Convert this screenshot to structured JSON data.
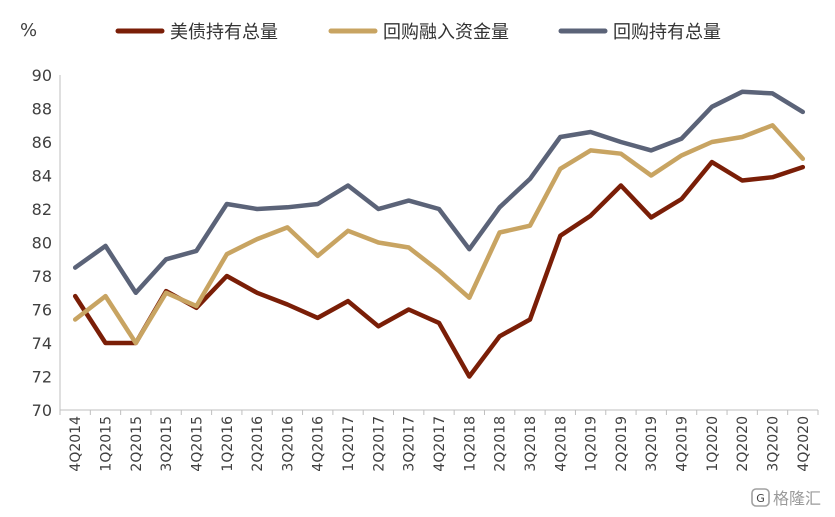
{
  "chart_data": {
    "type": "line",
    "ylabel": "%",
    "ylim": [
      70,
      90
    ],
    "yticks": [
      70,
      72,
      74,
      76,
      78,
      80,
      82,
      84,
      86,
      88,
      90
    ],
    "grid": false,
    "legend_position": "top",
    "categories": [
      "4Q2014",
      "1Q2015",
      "2Q2015",
      "3Q2015",
      "4Q2015",
      "1Q2016",
      "2Q2016",
      "3Q2016",
      "4Q2016",
      "1Q2017",
      "2Q2017",
      "3Q2017",
      "4Q2017",
      "1Q2018",
      "2Q2018",
      "3Q2018",
      "4Q2018",
      "1Q2019",
      "2Q2019",
      "3Q2019",
      "4Q2019",
      "1Q2020",
      "2Q2020",
      "3Q2020",
      "4Q2020"
    ],
    "series": [
      {
        "name": "美债持有总量",
        "color": "#7a1e07",
        "values": [
          76.8,
          74.0,
          74.0,
          77.1,
          76.1,
          78.0,
          77.0,
          76.3,
          75.5,
          76.5,
          75.0,
          76.0,
          75.2,
          72.0,
          74.4,
          75.4,
          80.4,
          81.6,
          83.4,
          81.5,
          82.6,
          84.8,
          83.7,
          83.9,
          84.5
        ]
      },
      {
        "name": "回购融入资金量",
        "color": "#c8a462",
        "values": [
          75.4,
          76.8,
          74.0,
          77.0,
          76.2,
          79.3,
          80.2,
          80.9,
          79.2,
          80.7,
          80.0,
          79.7,
          78.3,
          76.7,
          80.6,
          81.0,
          84.4,
          85.5,
          85.3,
          84.0,
          85.2,
          86.0,
          86.3,
          87.0,
          85.0
        ]
      },
      {
        "name": "回购持有总量",
        "color": "#5b6378",
        "values": [
          78.5,
          79.8,
          77.0,
          79.0,
          79.5,
          82.3,
          82.0,
          82.1,
          82.3,
          83.4,
          82.0,
          82.5,
          82.0,
          79.6,
          82.1,
          83.8,
          86.3,
          86.6,
          86.0,
          85.5,
          86.2,
          88.1,
          89.0,
          88.9,
          87.8
        ]
      }
    ]
  },
  "watermark": {
    "text": "格隆汇"
  }
}
